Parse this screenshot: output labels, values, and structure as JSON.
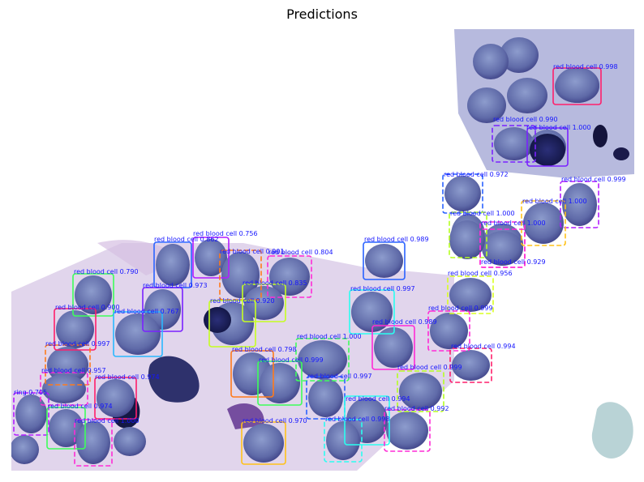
{
  "title": "Predictions",
  "colors": {
    "label_text": "#1414ff",
    "stain_dark": "#1b1f5e",
    "cell_fill": "#6d7bb4",
    "cytoplasm": "#c7a7d8",
    "platelet": "#b9d3d6"
  },
  "detections": [
    {
      "label": "red blood cell 0.998",
      "color": "#ff1f6b"
    },
    {
      "label": "red blood cell 0.990",
      "color": "#7a22ff"
    },
    {
      "label": "red blood cell 1.000",
      "color": "#7a22ff"
    },
    {
      "label": "red blood cell 0.972",
      "color": "#2962ff"
    },
    {
      "label": "red blood cell 0.999",
      "color": "#b21cff"
    },
    {
      "label": "red blood cell 1.000",
      "color": "#b6ff21"
    },
    {
      "label": "red blood cell 1.000",
      "color": "#ff2bd6"
    },
    {
      "label": "red blood cell 1.000",
      "color": "#ffc21a"
    },
    {
      "label": "red blood cell 0.929",
      "color": "#ff2bd6"
    },
    {
      "label": "red blood cell 0.756",
      "color": "#b21cff"
    },
    {
      "label": "red blood cell 0.862",
      "color": "#2962ff"
    },
    {
      "label": "red blood cell 0.901",
      "color": "#ff7a1a"
    },
    {
      "label": "red blood cell 0.804",
      "color": "#ff2bd6"
    },
    {
      "label": "red blood cell 0.989",
      "color": "#2962ff"
    },
    {
      "label": "red blood cell 0.790",
      "color": "#3dff5a"
    },
    {
      "label": "red blood cell 0.973",
      "color": "#7a22ff"
    },
    {
      "label": "red blood cell 0.835",
      "color": "#c6ff21"
    },
    {
      "label": "red blood cell 0.997",
      "color": "#2afff0"
    },
    {
      "label": "red blood cell 0.956",
      "color": "#d9ff21"
    },
    {
      "label": "red blood cell 0.999",
      "color": "#ff2bd6"
    },
    {
      "label": "red blood cell 0.900",
      "color": "#ff1f6b"
    },
    {
      "label": "red blood cell 0.767",
      "color": "#2ab8ff"
    },
    {
      "label": "red blood cell 0.920",
      "color": "#c6ff21"
    },
    {
      "label": "red blood cell 0.989",
      "color": "#ff2bd6"
    },
    {
      "label": "red blood cell 0.997",
      "color": "#ff7a1a"
    },
    {
      "label": "red blood cell 1.000",
      "color": "#3dff5a"
    },
    {
      "label": "red blood cell 0.994",
      "color": "#ff1f6b"
    },
    {
      "label": "red blood cell 0.798",
      "color": "#ff7a1a"
    },
    {
      "label": "red blood cell 0.999",
      "color": "#3dff5a"
    },
    {
      "label": "red blood cell 0.957",
      "color": "#ff2bd6"
    },
    {
      "label": "red blood cell 0.974",
      "color": "#ff1f6b"
    },
    {
      "label": "red blood cell 0.999",
      "color": "#b6ff21"
    },
    {
      "label": "ring 0.705",
      "color": "#b21cff"
    },
    {
      "label": "red blood cell 0.997",
      "color": "#2962ff"
    },
    {
      "label": "red blood cell 0.994",
      "color": "#2afff0"
    },
    {
      "label": "red blood cell 0.992",
      "color": "#ff2bd6"
    },
    {
      "label": "red blood cell 0.970",
      "color": "#ffc21a"
    },
    {
      "label": "red blood cell 0.998",
      "color": "#2afff0"
    },
    {
      "label": "red blood cell 0.974",
      "color": "#3dff5a"
    },
    {
      "label": "red blood cell 1.000",
      "color": "#ff2bd6"
    }
  ]
}
